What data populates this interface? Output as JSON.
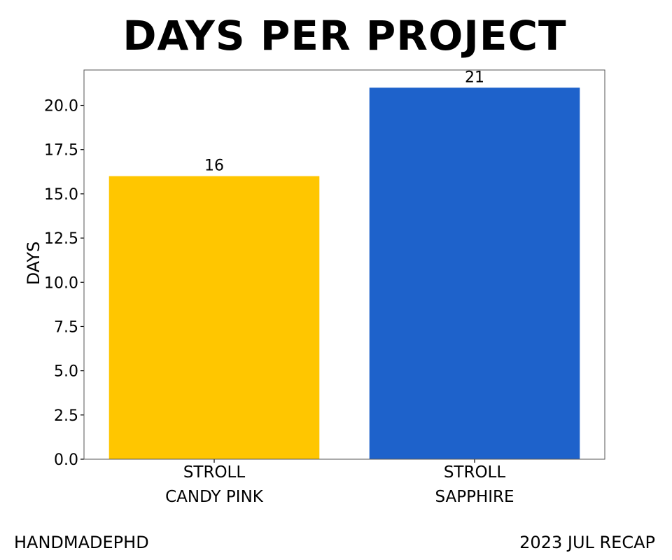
{
  "chart_data": {
    "type": "bar",
    "title": "DAYS PER PROJECT",
    "ylabel": "DAYS",
    "xlabel": "",
    "ylim": [
      0,
      22
    ],
    "yticks": [
      0.0,
      2.5,
      5.0,
      7.5,
      10.0,
      12.5,
      15.0,
      17.5,
      20.0
    ],
    "categories": [
      [
        "STROLL",
        "CANDY PINK"
      ],
      [
        "STROLL",
        "SAPPHIRE"
      ]
    ],
    "values": [
      16,
      21
    ],
    "data_labels": [
      "16",
      "21"
    ],
    "colors": [
      "#ffc600",
      "#1e62cb"
    ],
    "grid": false,
    "legend": "none"
  },
  "footer": {
    "left": "HANDMADEPHD",
    "right": "2023 JUL RECAP"
  }
}
